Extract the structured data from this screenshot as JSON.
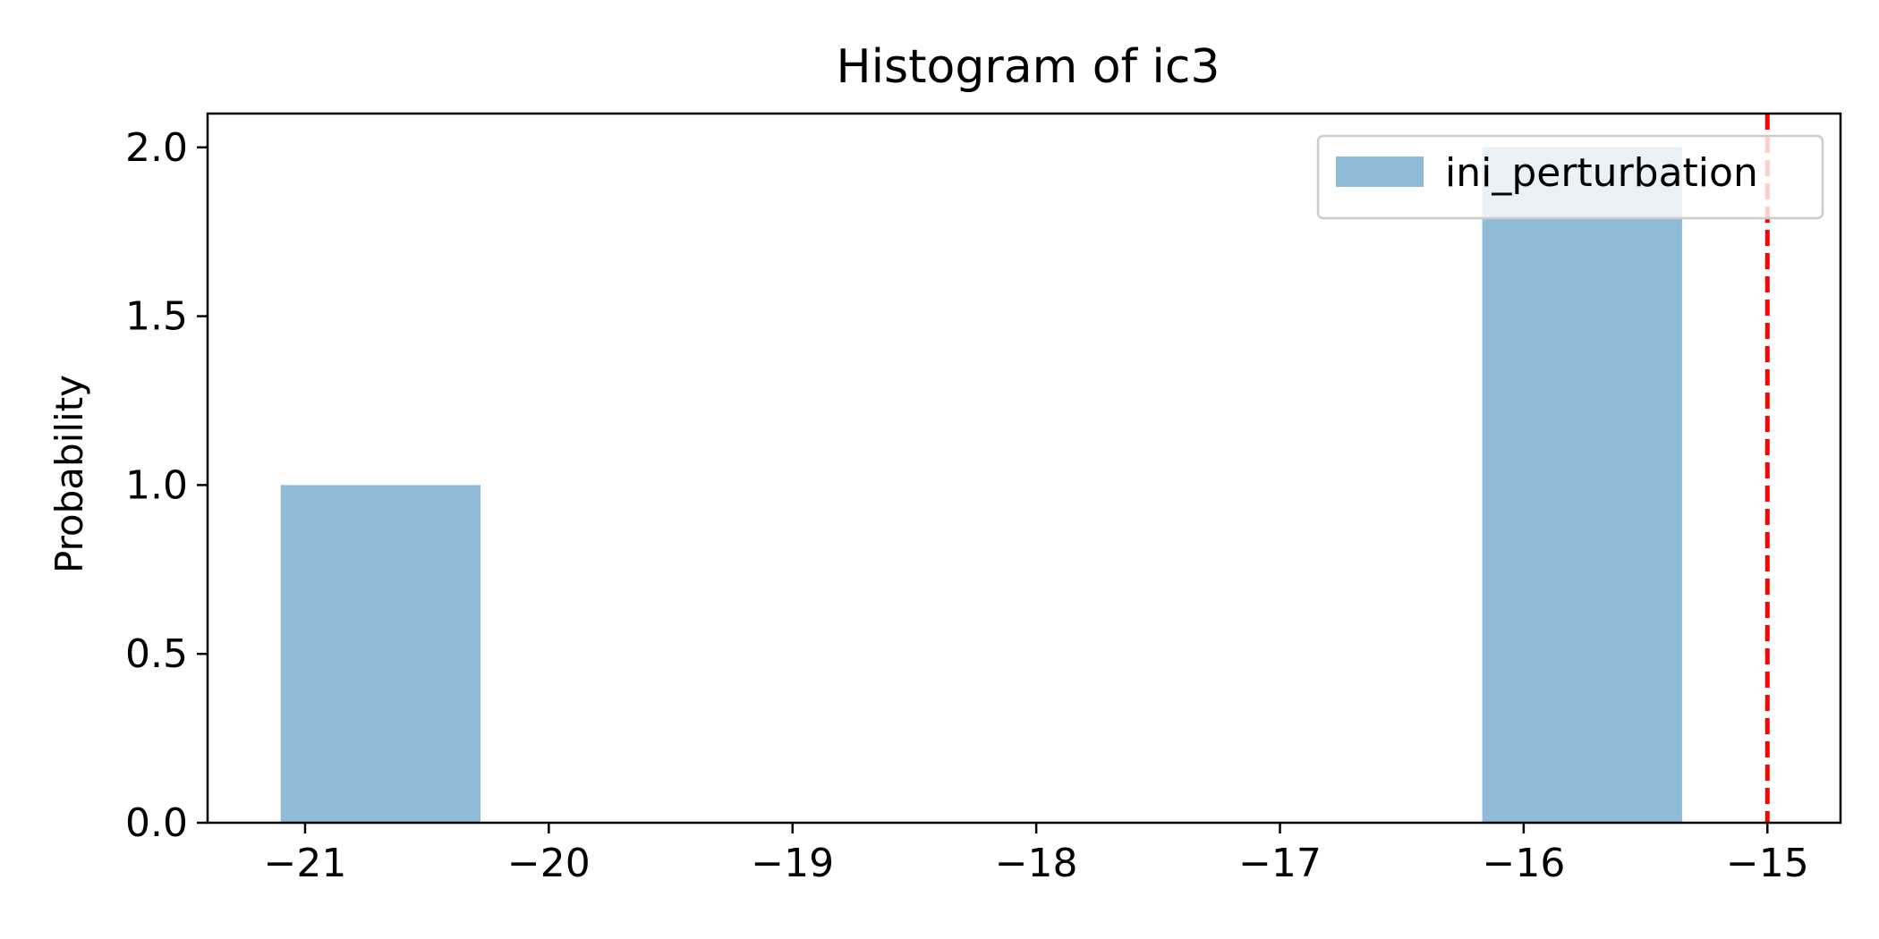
{
  "chart_data": {
    "type": "bar",
    "title": "Histogram of ic3",
    "xlabel": "",
    "ylabel": "Probability",
    "xlim": [
      -21.4,
      -14.7
    ],
    "ylim": [
      0,
      2.1
    ],
    "x_ticks": [
      -21,
      -20,
      -19,
      -18,
      -17,
      -16,
      -15
    ],
    "x_tick_labels": [
      "−21",
      "−20",
      "−19",
      "−18",
      "−17",
      "−16",
      "−15"
    ],
    "y_ticks": [
      0.0,
      0.5,
      1.0,
      1.5,
      2.0
    ],
    "y_tick_labels": [
      "0.0",
      "0.5",
      "1.0",
      "1.5",
      "2.0"
    ],
    "series": [
      {
        "name": "ini_perturbation",
        "color": "#8fbad8",
        "bins": [
          {
            "x0": -21.1,
            "x1": -20.28,
            "value": 1
          },
          {
            "x0": -16.17,
            "x1": -15.35,
            "value": 2
          }
        ]
      }
    ],
    "reference_line": {
      "x": -15,
      "color": "#ff0000",
      "style": "dashed"
    },
    "legend_position": "top-right",
    "grid": false
  }
}
